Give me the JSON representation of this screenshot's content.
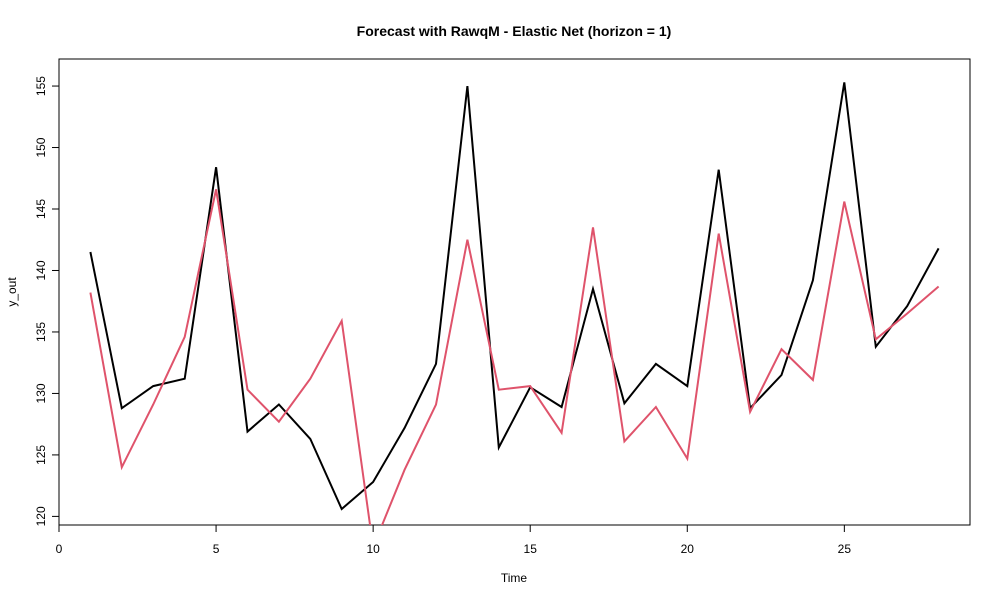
{
  "chart_data": {
    "type": "line",
    "title": "Forecast with RawqM - Elastic Net (horizon = 1)",
    "xlabel": "Time",
    "ylabel": "y_out",
    "xlim": [
      0,
      29
    ],
    "ylim": [
      119.3,
      157.2
    ],
    "x_ticks": [
      0,
      5,
      10,
      15,
      20,
      25
    ],
    "y_ticks": [
      120,
      125,
      130,
      135,
      140,
      145,
      150,
      155
    ],
    "grid": false,
    "legend": false,
    "x": [
      1,
      2,
      3,
      4,
      5,
      6,
      7,
      8,
      9,
      10,
      11,
      12,
      13,
      14,
      15,
      16,
      17,
      18,
      19,
      20,
      21,
      22,
      23,
      24,
      25,
      26,
      27,
      28
    ],
    "series": [
      {
        "color": "#000000",
        "values": [
          141.5,
          128.8,
          130.6,
          131.2,
          148.4,
          126.9,
          129.1,
          126.3,
          120.6,
          122.8,
          127.2,
          132.4,
          155.0,
          125.6,
          130.5,
          128.9,
          138.5,
          129.2,
          132.4,
          130.6,
          148.2,
          128.8,
          131.5,
          139.2,
          155.3,
          133.8,
          137.1,
          141.8
        ]
      },
      {
        "color": "#DF536B",
        "values": [
          138.2,
          124.0,
          129.1,
          134.6,
          146.6,
          130.3,
          127.7,
          131.2,
          135.9,
          117.5,
          123.8,
          129.1,
          142.5,
          130.3,
          130.6,
          126.8,
          143.5,
          126.1,
          128.9,
          124.7,
          143.0,
          128.5,
          133.6,
          131.1,
          145.6,
          134.4,
          136.5,
          138.7
        ]
      }
    ]
  }
}
